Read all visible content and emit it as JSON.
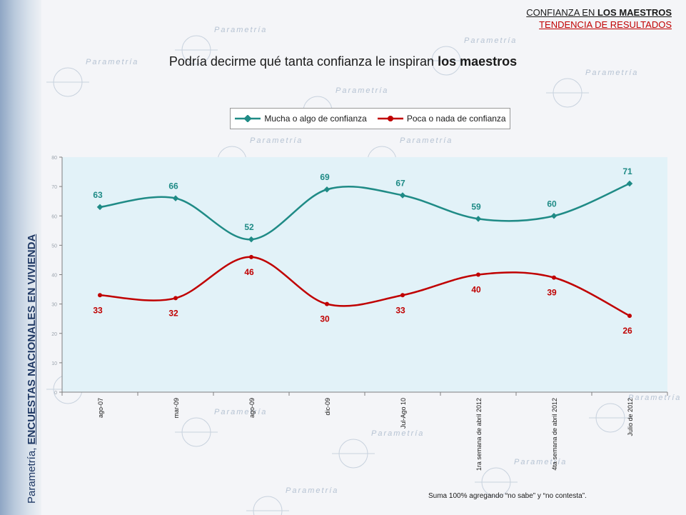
{
  "header": {
    "line1_prefix": "CONFIANZA EN ",
    "line1_bold": "LOS MAESTROS",
    "line2": "TENDENCIA DE RESULTADOS"
  },
  "question": {
    "prefix": "Podría decirme qué tanta confianza le inspiran ",
    "bold": "los maestros"
  },
  "side_title": {
    "prefix": "Parametría, ",
    "bold": "ENCUESTAS NACIONALES EN VIVIENDA"
  },
  "footnote": "Suma 100%  agregando “no sabe” y “no contesta”.",
  "watermark_text": "Parametría",
  "colors": {
    "teal": "#1f8b86",
    "red": "#c00000",
    "plot_bg": "#e2f2f8",
    "axis": "#7f7f7f"
  },
  "chart_data": {
    "type": "line",
    "title": "Podría decirme qué tanta confianza le inspiran los maestros",
    "categories": [
      "ago-07",
      "mar-09",
      "ago-09",
      "dic-09",
      "Jul-Ago 10",
      "1ra semana de abril 2012",
      "4ta semana de abril 2012",
      "Julio de 2012"
    ],
    "series": [
      {
        "name": "Mucha o algo de confianza",
        "color": "#1f8b86",
        "values": [
          63,
          66,
          52,
          69,
          67,
          59,
          60,
          71
        ]
      },
      {
        "name": "Poca o nada de confianza",
        "color": "#c00000",
        "values": [
          33,
          32,
          46,
          30,
          33,
          40,
          39,
          26
        ]
      }
    ],
    "ylim": [
      0,
      80
    ],
    "yticks": [
      0,
      10,
      20,
      30,
      40,
      50,
      60,
      70,
      80
    ],
    "legend_position": "top",
    "grid": false,
    "smooth": true
  }
}
